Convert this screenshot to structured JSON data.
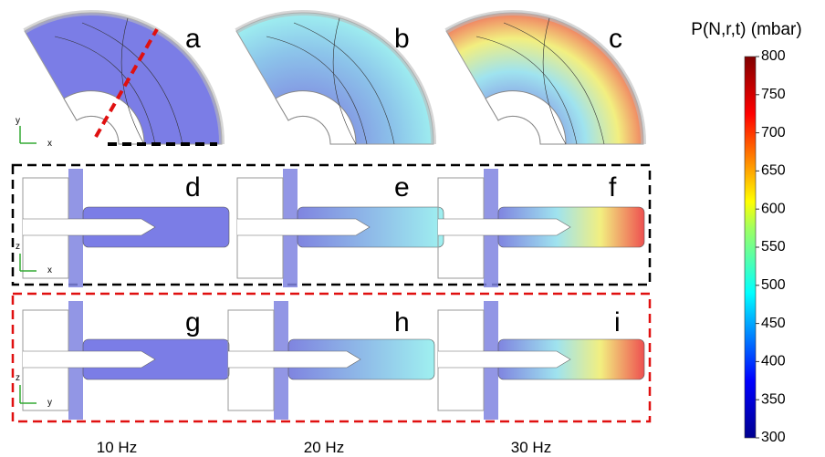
{
  "panels": [
    "a",
    "b",
    "c",
    "d",
    "e",
    "f",
    "g",
    "h",
    "i"
  ],
  "axis_labels": {
    "top": [
      "y",
      "x"
    ],
    "middle": [
      "z",
      "x"
    ],
    "bottom": [
      "z",
      "y"
    ]
  },
  "frequencies": [
    "10 Hz",
    "20 Hz",
    "30 Hz"
  ],
  "colorbar": {
    "title": "P(N,r,t) (mbar)",
    "range": [
      300,
      800
    ],
    "ticks": [
      300,
      350,
      400,
      450,
      500,
      550,
      600,
      650,
      700,
      750,
      800
    ]
  }
}
